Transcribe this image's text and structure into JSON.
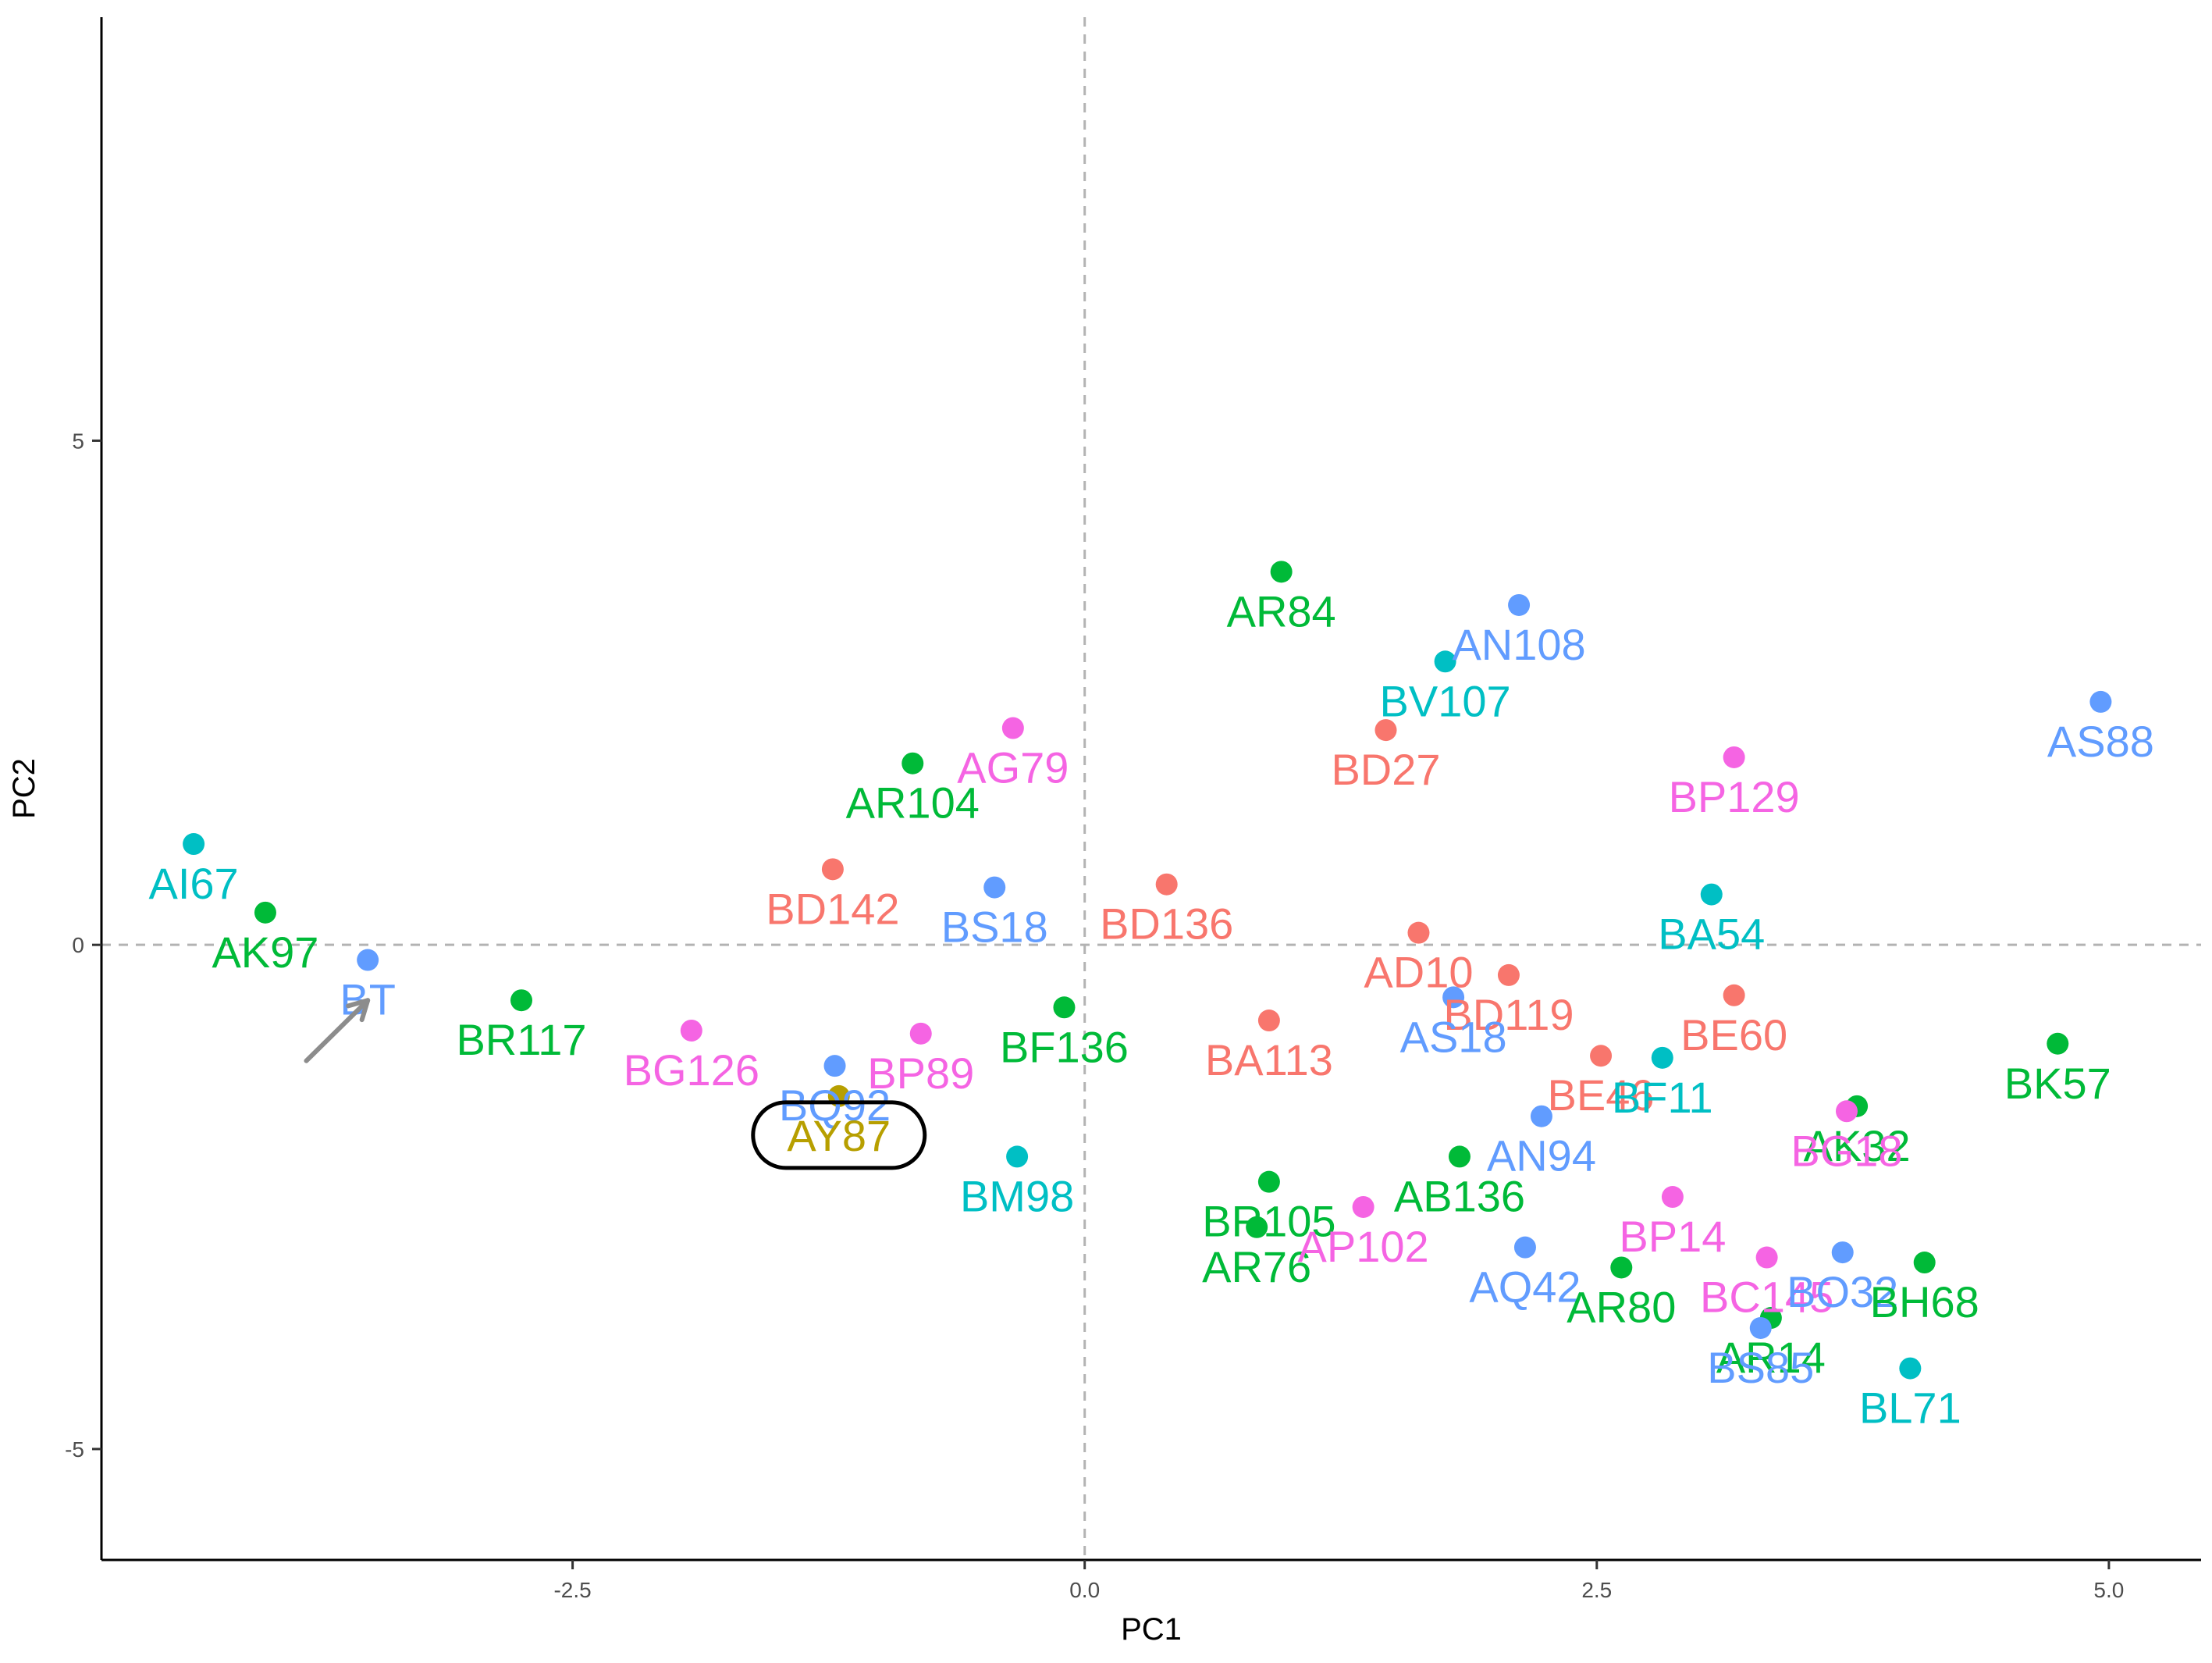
{
  "chart_data": {
    "type": "scatter",
    "xlabel": "PC1",
    "ylabel": "PC2",
    "xlim": [
      -4.8,
      5.45
    ],
    "ylim": [
      -6.1,
      9.2
    ],
    "x_ticks": [
      -2.5,
      0.0,
      2.5,
      5.0
    ],
    "x_tick_labels": [
      "-2.5",
      "0.0",
      "2.5",
      "5.0"
    ],
    "y_ticks": [
      -5,
      0,
      5
    ],
    "y_tick_labels": [
      "-5",
      "0",
      "5"
    ],
    "reference_lines": {
      "x": 0,
      "y": 0,
      "style": "dashed",
      "color": "#b3b3b3"
    },
    "grid": false,
    "legend": "none",
    "palette": {
      "red": "#F8766D",
      "gold": "#B79F00",
      "green": "#00BA38",
      "cyan": "#00BFC4",
      "blue": "#619CFF",
      "magenta": "#F564E3"
    },
    "highlight": {
      "label": "AY87",
      "x": -1.2,
      "y": -1.5,
      "color": "gold",
      "callout": "rounded-box"
    },
    "arrow": {
      "from": [
        -3.8,
        -1.15
      ],
      "to": [
        -3.5,
        -0.55
      ],
      "points_to": "BT"
    },
    "points": [
      {
        "label": "AR84",
        "x": 0.96,
        "y": 3.7,
        "color": "green"
      },
      {
        "label": "AN108",
        "x": 2.12,
        "y": 3.37,
        "color": "blue"
      },
      {
        "label": "BV107",
        "x": 1.76,
        "y": 2.81,
        "color": "cyan"
      },
      {
        "label": "AS88",
        "x": 4.96,
        "y": 2.41,
        "color": "blue"
      },
      {
        "label": "AG79",
        "x": -0.35,
        "y": 2.15,
        "color": "magenta"
      },
      {
        "label": "BD27",
        "x": 1.47,
        "y": 2.13,
        "color": "red"
      },
      {
        "label": "BP129",
        "x": 3.17,
        "y": 1.86,
        "color": "magenta"
      },
      {
        "label": "AR104",
        "x": -0.84,
        "y": 1.8,
        "color": "green"
      },
      {
        "label": "AI67",
        "x": -4.35,
        "y": 1.0,
        "color": "cyan"
      },
      {
        "label": "AK97",
        "x": -4.0,
        "y": 0.32,
        "color": "green"
      },
      {
        "label": "BD142",
        "x": -1.23,
        "y": 0.75,
        "color": "red"
      },
      {
        "label": "BD136",
        "x": 0.4,
        "y": 0.6,
        "color": "red"
      },
      {
        "label": "BA54",
        "x": 3.06,
        "y": 0.5,
        "color": "cyan"
      },
      {
        "label": "BS18",
        "x": -0.44,
        "y": 0.57,
        "color": "blue"
      },
      {
        "label": "AD10",
        "x": 1.63,
        "y": 0.12,
        "color": "red"
      },
      {
        "label": "BD119",
        "x": 2.07,
        "y": -0.3,
        "color": "red"
      },
      {
        "label": "BE46",
        "x": 2.52,
        "y": -1.1,
        "color": "red"
      },
      {
        "label": "BE60",
        "x": 3.17,
        "y": -0.5,
        "color": "red"
      },
      {
        "label": "BK57",
        "x": 4.75,
        "y": -0.98,
        "color": "green"
      },
      {
        "label": "AK32",
        "x": 3.77,
        "y": -1.6,
        "color": "green"
      },
      {
        "label": "BG18",
        "x": 3.72,
        "y": -1.65,
        "color": "magenta"
      },
      {
        "label": "BT",
        "x": -3.5,
        "y": -0.15,
        "color": "blue"
      },
      {
        "label": "BG126",
        "x": -1.92,
        "y": -0.85,
        "color": "magenta"
      },
      {
        "label": "BP89",
        "x": -0.8,
        "y": -0.88,
        "color": "magenta"
      },
      {
        "label": "BQ92",
        "x": -1.22,
        "y": -1.2,
        "color": "blue"
      },
      {
        "label": "AY87",
        "x": -1.2,
        "y": -1.5,
        "color": "gold"
      },
      {
        "label": "BM98",
        "x": -0.33,
        "y": -2.1,
        "color": "cyan"
      },
      {
        "label": "BA113",
        "x": 0.9,
        "y": -0.75,
        "color": "red"
      },
      {
        "label": "BR117",
        "x": -2.75,
        "y": -0.55,
        "color": "green"
      },
      {
        "label": "BF136",
        "x": -0.1,
        "y": -0.62,
        "color": "green"
      },
      {
        "label": "AS18",
        "x": 1.8,
        "y": -0.52,
        "color": "blue"
      },
      {
        "label": "AN94",
        "x": 2.23,
        "y": -1.7,
        "color": "blue"
      },
      {
        "label": "BF11",
        "x": 2.82,
        "y": -1.12,
        "color": "cyan"
      },
      {
        "label": "BR105",
        "x": 0.9,
        "y": -2.35,
        "color": "green"
      },
      {
        "label": "AB136",
        "x": 1.83,
        "y": -2.1,
        "color": "green"
      },
      {
        "label": "AR76",
        "x": 0.84,
        "y": -2.8,
        "color": "green"
      },
      {
        "label": "AP102",
        "x": 1.36,
        "y": -2.6,
        "color": "magenta"
      },
      {
        "label": "BC145",
        "x": 3.33,
        "y": -3.1,
        "color": "magenta"
      },
      {
        "label": "BP14",
        "x": 2.87,
        "y": -2.5,
        "color": "magenta"
      },
      {
        "label": "AQ42",
        "x": 2.15,
        "y": -3.0,
        "color": "blue"
      },
      {
        "label": "AR80",
        "x": 2.62,
        "y": -3.2,
        "color": "green"
      },
      {
        "label": "BO32",
        "x": 3.7,
        "y": -3.05,
        "color": "blue"
      },
      {
        "label": "BH68",
        "x": 4.1,
        "y": -3.15,
        "color": "green"
      },
      {
        "label": "AR14",
        "x": 3.35,
        "y": -3.7,
        "color": "green"
      },
      {
        "label": "BS85",
        "x": 3.3,
        "y": -3.8,
        "color": "blue"
      },
      {
        "label": "BL71",
        "x": 4.03,
        "y": -4.2,
        "color": "cyan"
      }
    ]
  }
}
